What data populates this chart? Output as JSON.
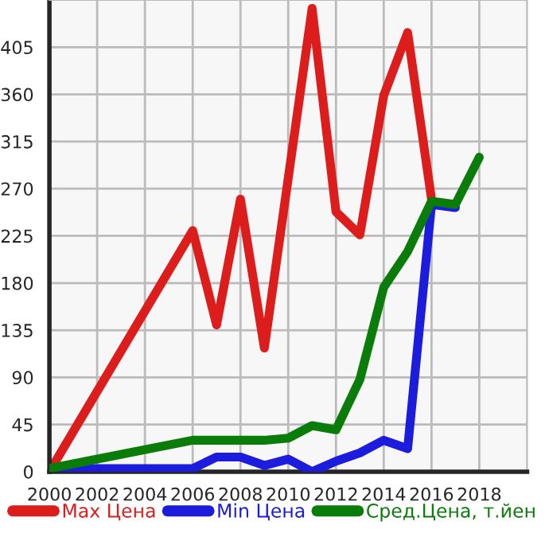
{
  "chart_data": {
    "type": "line",
    "xlim": [
      2000,
      2020
    ],
    "ylim": [
      0,
      450
    ],
    "xticks": [
      2000,
      2002,
      2004,
      2006,
      2008,
      2010,
      2012,
      2014,
      2016,
      2018
    ],
    "yticks": [
      0,
      45,
      90,
      135,
      180,
      225,
      270,
      315,
      360,
      405
    ],
    "grid": true,
    "legend": "bottom",
    "marker": "none",
    "line_style": "solid",
    "series": [
      {
        "name": "Max Цена",
        "color": "#dd1c1c",
        "x": [
          2000,
          2006,
          2007,
          2008,
          2009,
          2010,
          2011,
          2012,
          2013,
          2014,
          2015,
          2016
        ],
        "values": [
          0,
          230,
          140,
          260,
          118,
          280,
          442,
          248,
          226,
          359,
          419,
          260
        ]
      },
      {
        "name": "Min Цена",
        "color": "#1c1cdd",
        "x": [
          2000,
          2006,
          2007,
          2008,
          2009,
          2010,
          2011,
          2012,
          2013,
          2014,
          2015,
          2016,
          2017
        ],
        "values": [
          3,
          3,
          14,
          14,
          6,
          12,
          0,
          10,
          18,
          30,
          22,
          255,
          252
        ]
      },
      {
        "name": "Сред.Цена, т.йен",
        "color": "#0a7c0a",
        "x": [
          2000,
          2006,
          2007,
          2008,
          2009,
          2010,
          2011,
          2012,
          2013,
          2014,
          2015,
          2016,
          2017,
          2018
        ],
        "values": [
          3,
          30,
          30,
          30,
          30,
          32,
          44,
          40,
          88,
          176,
          210,
          258,
          255,
          300
        ]
      }
    ]
  }
}
